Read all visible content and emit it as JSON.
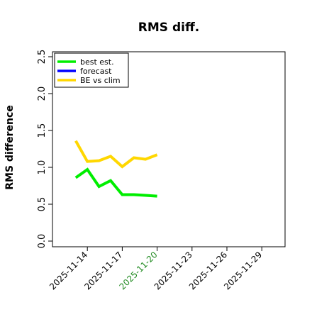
{
  "chart_data": {
    "type": "line",
    "title": "RMS diff.",
    "xlabel": "",
    "ylabel": "RMS difference",
    "x_ticks": [
      "2025-11-14",
      "2025-11-17",
      "2025-11-20",
      "2025-11-23",
      "2025-11-26",
      "2025-11-29"
    ],
    "highlighted_tick": "2025-11-20",
    "highlight_color": "#228B22",
    "xlim": [
      "2025-11-11",
      "2025-12-01"
    ],
    "ylim": [
      0,
      2.5
    ],
    "y_ticks": [
      "0.0",
      "0.5",
      "1.0",
      "1.5",
      "2.0",
      "2.5"
    ],
    "grid": false,
    "legend_position": "top-left",
    "series": [
      {
        "name": "best est.",
        "color": "#00ee00",
        "x": [
          "2025-11-13",
          "2025-11-14",
          "2025-11-15",
          "2025-11-16",
          "2025-11-17",
          "2025-11-18",
          "2025-11-19",
          "2025-11-20"
        ],
        "values": [
          0.86,
          0.97,
          0.74,
          0.82,
          0.63,
          0.63,
          0.62,
          0.61
        ]
      },
      {
        "name": "forecast",
        "color": "#0000ff",
        "x": [],
        "values": []
      },
      {
        "name": "BE vs clim",
        "color": "#ffd700",
        "x": [
          "2025-11-13",
          "2025-11-14",
          "2025-11-15",
          "2025-11-16",
          "2025-11-17",
          "2025-11-18",
          "2025-11-19",
          "2025-11-20"
        ],
        "values": [
          1.36,
          1.08,
          1.09,
          1.15,
          1.01,
          1.13,
          1.11,
          1.17
        ]
      }
    ]
  }
}
